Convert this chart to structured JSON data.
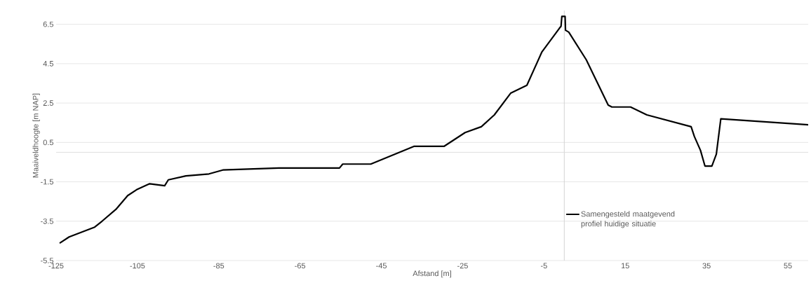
{
  "chart_data": {
    "type": "line",
    "xlabel": "Afstand [m]",
    "ylabel": "Maaiveldhoogte  [m NAP]",
    "x": [
      -124.0,
      -121.8,
      -115.5,
      -113.7,
      -110.3,
      -107.4,
      -105.2,
      -102.0,
      -98.3,
      -97.4,
      -93.1,
      -87.4,
      -84.0,
      -70.2,
      -55.3,
      -54.5,
      -47.6,
      -37.0,
      -33.6,
      -29.6,
      -24.4,
      -20.4,
      -17.2,
      -13.2,
      -9.2,
      -5.5,
      -1.2,
      -0.8,
      -0.6,
      0.2,
      0.3,
      1.1,
      5.4,
      10.8,
      11.7,
      16.3,
      20.3,
      31.2,
      32.0,
      33.5,
      34.6,
      36.3,
      37.4,
      38.5,
      60.0
    ],
    "series": [
      {
        "name": "Samengesteld maatgevend profiel huidige situatie",
        "color": "#000000",
        "values": [
          -4.6,
          -4.3,
          -3.8,
          -3.5,
          -2.9,
          -2.2,
          -1.9,
          -1.6,
          -1.7,
          -1.4,
          -1.2,
          -1.1,
          -0.9,
          -0.8,
          -0.8,
          -0.6,
          -0.6,
          0.3,
          0.3,
          0.3,
          1.0,
          1.3,
          1.9,
          3.0,
          3.4,
          5.1,
          6.3,
          6.4,
          6.9,
          6.9,
          6.2,
          6.1,
          4.7,
          2.4,
          2.3,
          2.3,
          1.9,
          1.3,
          0.8,
          0.1,
          -0.7,
          -0.7,
          -0.1,
          1.7,
          1.4
        ]
      }
    ],
    "xlim": [
      -125,
      60
    ],
    "ylim": [
      -5.5,
      7.2
    ],
    "xticks": [
      -125,
      -105,
      -85,
      -65,
      -45,
      -25,
      -5,
      15,
      35,
      55
    ],
    "yticks": [
      -5.5,
      -3.5,
      -1.5,
      0.5,
      2.5,
      4.5,
      6.5
    ],
    "ref_lines": [
      {
        "axis": "x",
        "value": 0,
        "color": "#d0d0d0"
      },
      {
        "axis": "y",
        "value": 0,
        "color": "#d9d9d9"
      }
    ],
    "grid": "y",
    "legend": "bottom right",
    "marker": "none",
    "line_style": "solid"
  }
}
